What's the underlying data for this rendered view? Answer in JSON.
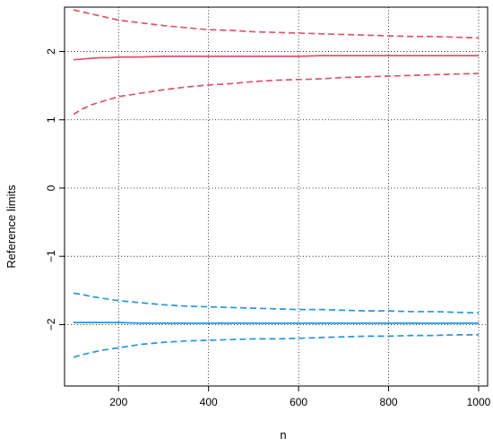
{
  "chart_data": {
    "type": "line",
    "title": "",
    "xlabel": "n",
    "ylabel": "Reference limits",
    "xlim": [
      80,
      1020
    ],
    "ylim": [
      -2.9,
      2.65
    ],
    "x_ticks": [
      200,
      400,
      600,
      800,
      1000
    ],
    "y_ticks": [
      -2,
      -1,
      0,
      1,
      2
    ],
    "x_tick_labels": [
      "200",
      "400",
      "600",
      "800",
      "1000"
    ],
    "y_tick_labels": [
      "−2",
      "−1",
      "0",
      "1",
      "2"
    ],
    "grid": true,
    "legend": "none",
    "colors": {
      "red": "#DF536B",
      "blue": "#2297E6",
      "grid": "#000000"
    },
    "x": [
      100,
      120,
      140,
      160,
      180,
      200,
      250,
      300,
      350,
      400,
      450,
      500,
      550,
      600,
      650,
      700,
      750,
      800,
      850,
      900,
      950,
      1000
    ],
    "series": [
      {
        "color": "#DF536B",
        "style": "dashed",
        "values": [
          2.61,
          2.58,
          2.55,
          2.52,
          2.49,
          2.46,
          2.42,
          2.38,
          2.35,
          2.32,
          2.31,
          2.29,
          2.28,
          2.27,
          2.26,
          2.25,
          2.24,
          2.23,
          2.22,
          2.22,
          2.21,
          2.2
        ]
      },
      {
        "color": "#DF536B",
        "style": "solid",
        "values": [
          1.88,
          1.89,
          1.9,
          1.91,
          1.91,
          1.92,
          1.92,
          1.93,
          1.93,
          1.93,
          1.93,
          1.93,
          1.93,
          1.93,
          1.94,
          1.94,
          1.94,
          1.94,
          1.94,
          1.94,
          1.94,
          1.94
        ]
      },
      {
        "color": "#DF536B",
        "style": "dashed",
        "values": [
          1.08,
          1.16,
          1.22,
          1.26,
          1.3,
          1.34,
          1.39,
          1.44,
          1.48,
          1.51,
          1.53,
          1.56,
          1.58,
          1.59,
          1.6,
          1.62,
          1.63,
          1.64,
          1.65,
          1.66,
          1.67,
          1.68
        ]
      },
      {
        "color": "#2297E6",
        "style": "dashed",
        "values": [
          -1.54,
          -1.56,
          -1.59,
          -1.61,
          -1.63,
          -1.65,
          -1.68,
          -1.71,
          -1.73,
          -1.74,
          -1.75,
          -1.76,
          -1.77,
          -1.78,
          -1.78,
          -1.79,
          -1.8,
          -1.8,
          -1.81,
          -1.81,
          -1.82,
          -1.83
        ]
      },
      {
        "color": "#2297E6",
        "style": "solid",
        "values": [
          -1.97,
          -1.97,
          -1.97,
          -1.97,
          -1.97,
          -1.97,
          -1.98,
          -1.98,
          -1.98,
          -1.98,
          -1.98,
          -1.98,
          -1.98,
          -1.98,
          -1.98,
          -1.98,
          -1.98,
          -1.98,
          -1.98,
          -1.98,
          -1.98,
          -1.98
        ]
      },
      {
        "color": "#2297E6",
        "style": "dashed",
        "values": [
          -2.48,
          -2.44,
          -2.41,
          -2.38,
          -2.36,
          -2.34,
          -2.29,
          -2.26,
          -2.24,
          -2.23,
          -2.22,
          -2.21,
          -2.21,
          -2.2,
          -2.19,
          -2.18,
          -2.17,
          -2.17,
          -2.16,
          -2.16,
          -2.15,
          -2.15
        ]
      }
    ]
  }
}
